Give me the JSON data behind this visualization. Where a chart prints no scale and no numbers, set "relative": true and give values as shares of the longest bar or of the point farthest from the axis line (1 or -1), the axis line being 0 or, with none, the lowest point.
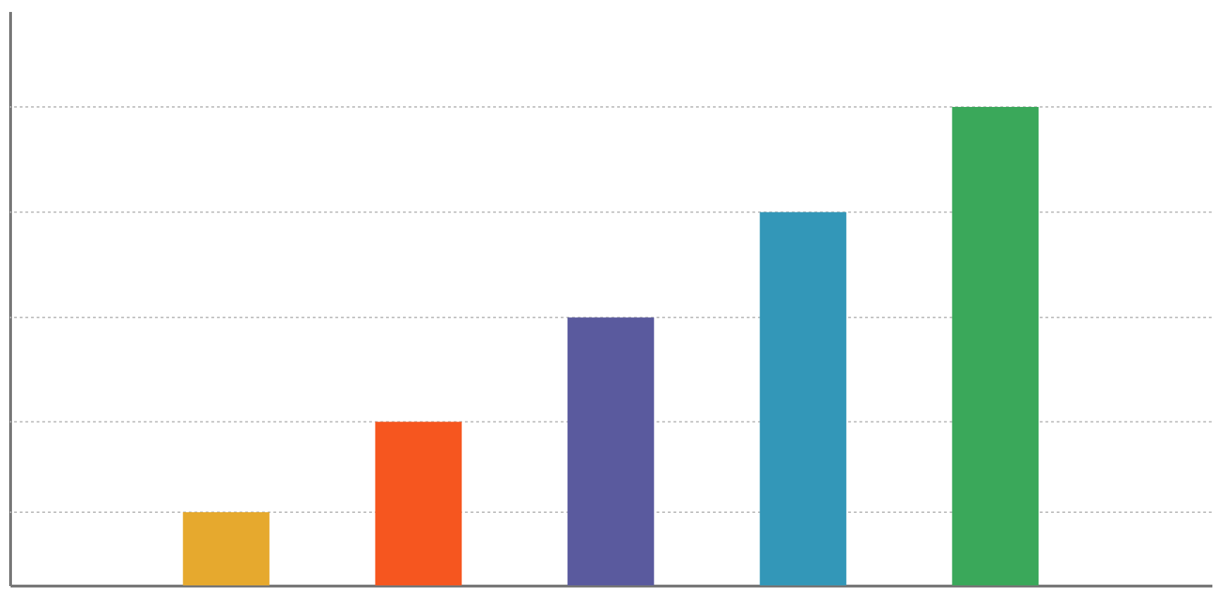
{
  "chart_data": {
    "type": "bar",
    "relative": true,
    "categories": [
      null,
      null,
      null,
      null,
      null
    ],
    "values": [
      0.153,
      0.342,
      0.56,
      0.78,
      1
    ],
    "colors": [
      "#e6a92e",
      "#f6561f",
      "#5a5a9e",
      "#3397b8",
      "#3aa85a"
    ],
    "ref_lines": [
      {
        "axis": "y",
        "value": 0.153,
        "color": "#bbbbbb",
        "line_style": "dotted"
      },
      {
        "axis": "y",
        "value": 0.342,
        "color": "#bbbbbb",
        "line_style": "dotted"
      },
      {
        "axis": "y",
        "value": 0.56,
        "color": "#bbbbbb",
        "line_style": "dotted"
      },
      {
        "axis": "y",
        "value": 0.78,
        "color": "#bbbbbb",
        "line_style": "dotted"
      },
      {
        "axis": "y",
        "value": 1,
        "color": "#bbbbbb",
        "line_style": "dotted"
      }
    ]
  }
}
